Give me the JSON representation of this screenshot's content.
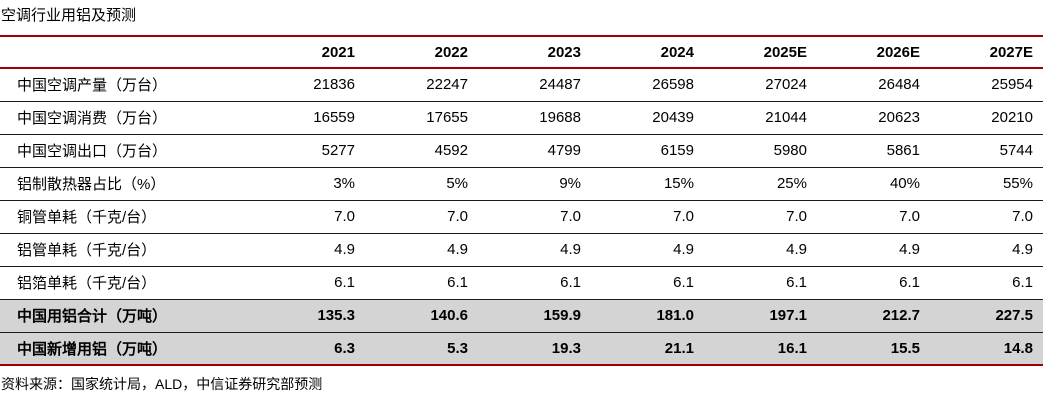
{
  "title": "空调行业用铝及预测",
  "source": "资料来源：国家统计局，ALD，中信证券研究部预测",
  "colors": {
    "accent_red": "#a00000",
    "highlight_gray": "#d4d4d4",
    "row_separator": "#1a1a1a",
    "text": "#000000",
    "background": "#ffffff"
  },
  "chart_data": {
    "type": "table",
    "title": "空调行业用铝及预测",
    "columns": [
      "2021",
      "2022",
      "2023",
      "2024",
      "2025E",
      "2026E",
      "2027E"
    ],
    "rows": [
      {
        "label": "中国空调产量（万台）",
        "highlight": false,
        "values": [
          "21836",
          "22247",
          "24487",
          "26598",
          "27024",
          "26484",
          "25954"
        ]
      },
      {
        "label": "中国空调消费（万台）",
        "highlight": false,
        "values": [
          "16559",
          "17655",
          "19688",
          "20439",
          "21044",
          "20623",
          "20210"
        ]
      },
      {
        "label": "中国空调出口（万台）",
        "highlight": false,
        "values": [
          "5277",
          "4592",
          "4799",
          "6159",
          "5980",
          "5861",
          "5744"
        ]
      },
      {
        "label": "铝制散热器占比（%）",
        "highlight": false,
        "values": [
          "3%",
          "5%",
          "9%",
          "15%",
          "25%",
          "40%",
          "55%"
        ]
      },
      {
        "label": "铜管单耗（千克/台）",
        "highlight": false,
        "values": [
          "7.0",
          "7.0",
          "7.0",
          "7.0",
          "7.0",
          "7.0",
          "7.0"
        ]
      },
      {
        "label": "铝管单耗（千克/台）",
        "highlight": false,
        "values": [
          "4.9",
          "4.9",
          "4.9",
          "4.9",
          "4.9",
          "4.9",
          "4.9"
        ]
      },
      {
        "label": "铝箔单耗（千克/台）",
        "highlight": false,
        "values": [
          "6.1",
          "6.1",
          "6.1",
          "6.1",
          "6.1",
          "6.1",
          "6.1"
        ]
      },
      {
        "label": "中国用铝合计（万吨）",
        "highlight": true,
        "values": [
          "135.3",
          "140.6",
          "159.9",
          "181.0",
          "197.1",
          "212.7",
          "227.5"
        ]
      },
      {
        "label": "中国新增用铝（万吨）",
        "highlight": true,
        "values": [
          "6.3",
          "5.3",
          "19.3",
          "21.1",
          "16.1",
          "15.5",
          "14.8"
        ]
      }
    ],
    "source": "资料来源：国家统计局，ALD，中信证券研究部预测"
  }
}
